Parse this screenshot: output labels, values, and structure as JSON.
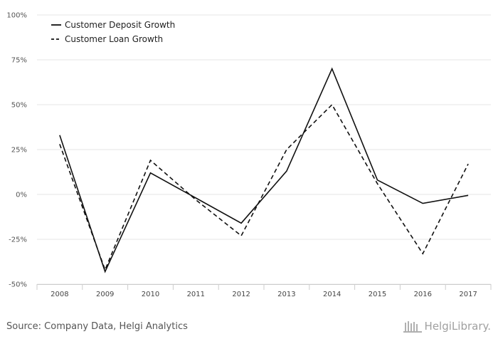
{
  "chart_data": {
    "type": "line",
    "categories": [
      "2008",
      "2009",
      "2010",
      "2011",
      "2012",
      "2013",
      "2014",
      "2015",
      "2016",
      "2017"
    ],
    "series": [
      {
        "name": "Customer Deposit Growth",
        "style": "solid",
        "color": "#111111",
        "values": [
          33,
          -43,
          12,
          -2,
          -16,
          13,
          70,
          8,
          -5,
          -0.5
        ]
      },
      {
        "name": "Customer Loan Growth",
        "style": "dashed",
        "color": "#111111",
        "values": [
          28,
          -42,
          19,
          -3,
          -23,
          25,
          50,
          6,
          -33,
          17
        ]
      }
    ],
    "yticks": [
      {
        "value": 100,
        "label": "100%"
      },
      {
        "value": 75,
        "label": "75%"
      },
      {
        "value": 50,
        "label": "50%"
      },
      {
        "value": 25,
        "label": "25%"
      },
      {
        "value": 0,
        "label": "0%"
      },
      {
        "value": -25,
        "label": "-25%"
      },
      {
        "value": -50,
        "label": "-50%"
      }
    ],
    "ylim": [
      -50,
      100
    ],
    "grid": true,
    "legend_position": "top-left",
    "gridColor": "#e6e6e6"
  },
  "footer": {
    "source": "Source: Company Data, Helgi Analytics",
    "brand_part1": "Helgi",
    "brand_part2": "Library."
  }
}
